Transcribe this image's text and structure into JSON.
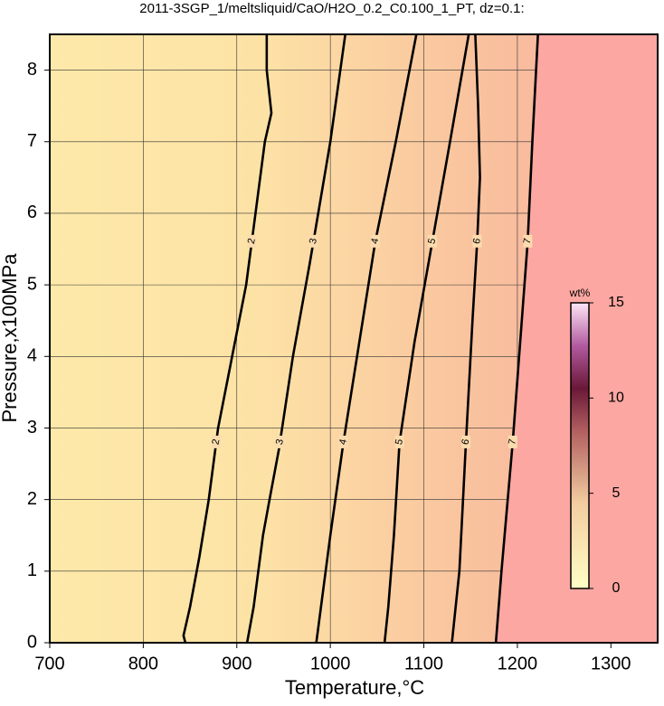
{
  "chart_data": {
    "type": "contour",
    "title": "2011-3SGP_1/meltsliquid/CaO/H2O_0.2_C0.100_1_PT, dz=0.1:",
    "x_label": "Temperature,°C",
    "y_label": "Pressure,x100MPa",
    "xlim": [
      700,
      1350
    ],
    "ylim": [
      0,
      8.5
    ],
    "xticks": [
      700,
      800,
      900,
      1000,
      1100,
      1200,
      1300
    ],
    "yticks": [
      0,
      1,
      2,
      3,
      4,
      5,
      6,
      7,
      8
    ],
    "grid": true,
    "contours": [
      {
        "level": 2,
        "x": [
          845,
          843,
          850,
          860,
          870,
          880,
          895,
          910,
          920,
          930,
          937,
          932,
          932
        ],
        "y": [
          0,
          0.1,
          0.5,
          1.2,
          2,
          3,
          4,
          5,
          6,
          7,
          7.4,
          8,
          8.5
        ]
      },
      {
        "level": 3,
        "x": [
          911,
          918,
          928,
          935,
          945,
          960,
          978,
          1000,
          1016
        ],
        "y": [
          0,
          0.5,
          1.5,
          2,
          2.7,
          4,
          5.3,
          7,
          8.5
        ]
      },
      {
        "level": 4,
        "x": [
          985,
          990,
          1000,
          1014,
          1031,
          1048,
          1070,
          1092
        ],
        "y": [
          0,
          0.5,
          1.5,
          2.8,
          4.2,
          5.6,
          7,
          8.5
        ]
      },
      {
        "level": 5,
        "x": [
          1058,
          1062,
          1068,
          1074,
          1090,
          1109,
          1128,
          1148
        ],
        "y": [
          0,
          0.5,
          1.5,
          2.8,
          4.2,
          5.6,
          7,
          8.5
        ]
      },
      {
        "level": 6,
        "x": [
          1130,
          1138,
          1145,
          1152,
          1157,
          1160,
          1158,
          1155
        ],
        "y": [
          0,
          1,
          2.8,
          4.5,
          5.6,
          6.5,
          7.5,
          8.5
        ]
      },
      {
        "level": 7,
        "x": [
          1177,
          1183,
          1195,
          1203,
          1211,
          1216,
          1222
        ],
        "y": [
          0,
          1,
          2.8,
          4.2,
          5.6,
          7,
          8.5
        ]
      }
    ],
    "colorbar": {
      "label": "wt%",
      "lim": [
        0,
        15
      ],
      "ticks": [
        0,
        5,
        10,
        15
      ]
    }
  }
}
